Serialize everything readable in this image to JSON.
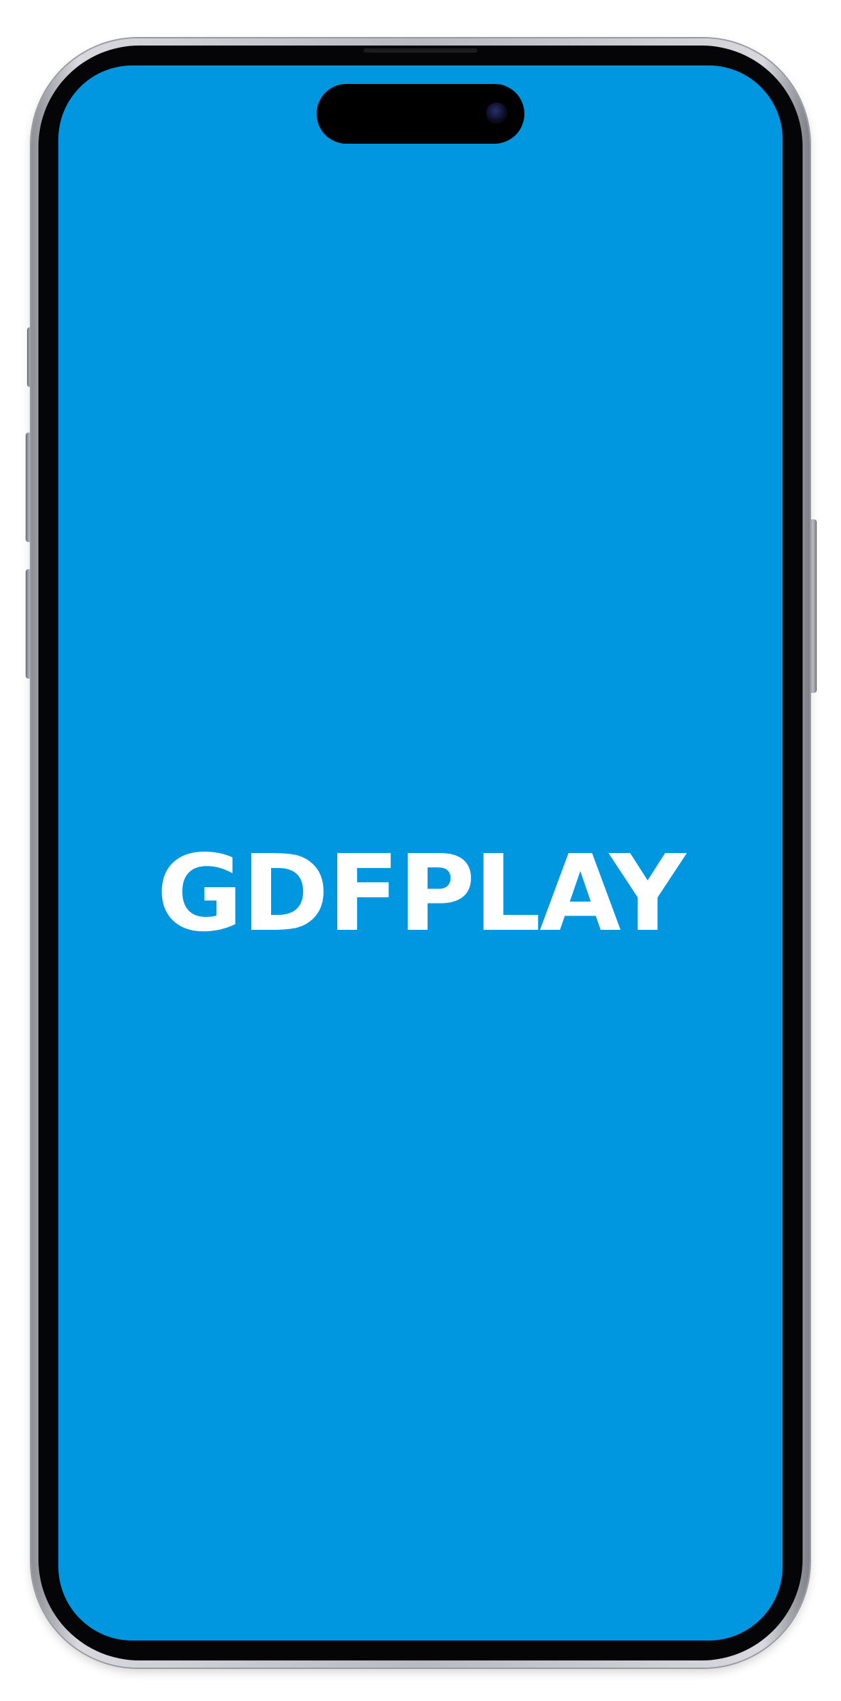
{
  "device": {
    "frame_color": "#b9b9c2",
    "bezel_color": "#050507",
    "screen_color": "#0096e0",
    "island_color": "#000000"
  },
  "screen": {
    "logo_text": "GDFPLAY",
    "logo_color": "#ffffff"
  }
}
